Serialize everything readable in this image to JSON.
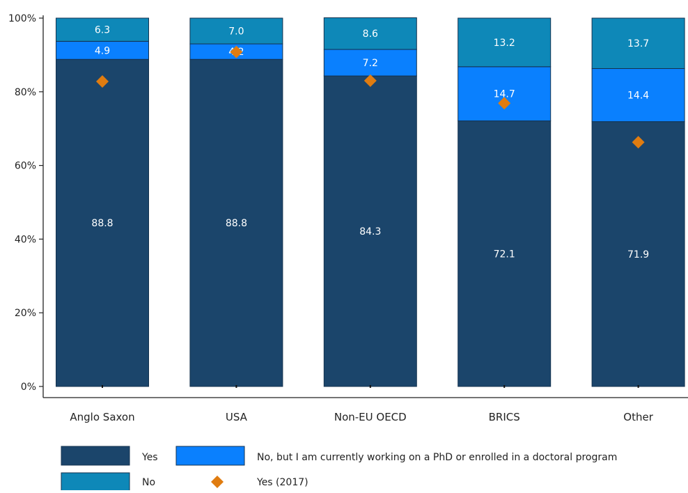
{
  "chart_data": {
    "type": "bar",
    "stacked": true,
    "categories": [
      "Anglo Saxon",
      "USA",
      "Non-EU OECD",
      "BRICS",
      "Other"
    ],
    "series": [
      {
        "name": "Yes",
        "values": [
          88.8,
          88.8,
          84.3,
          72.1,
          71.9
        ],
        "color": "#1b456b"
      },
      {
        "name": "No, but I am currently working on a PhD or enrolled in a doctoral program",
        "values": [
          4.9,
          4.2,
          7.2,
          14.7,
          14.4
        ],
        "color": "#0a80fe"
      },
      {
        "name": "No",
        "values": [
          6.3,
          7.0,
          8.6,
          13.2,
          13.7
        ],
        "color": "#0e88b8"
      }
    ],
    "markers": {
      "name": "Yes (2017)",
      "values": [
        82.8,
        90.8,
        83.0,
        76.9,
        66.3
      ],
      "color": "#e07c10",
      "shape": "diamond"
    },
    "y_ticks": [
      "0%",
      "20%",
      "40%",
      "60%",
      "80%",
      "100%"
    ],
    "ylim": [
      0,
      100
    ],
    "title": "",
    "xlabel": "",
    "ylabel": "",
    "grid": false,
    "legend_placement": "bottom"
  }
}
